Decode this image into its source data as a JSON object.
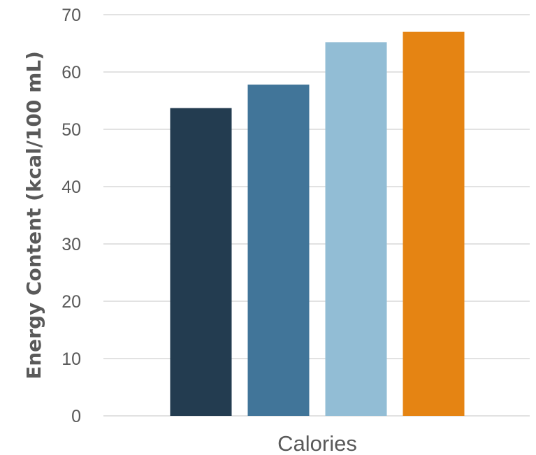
{
  "chart_data": {
    "type": "bar",
    "categories": [
      "Calories"
    ],
    "series": [
      {
        "values": [
          53.7
        ],
        "color": "#233c50"
      },
      {
        "values": [
          57.8
        ],
        "color": "#417599"
      },
      {
        "values": [
          65.2
        ],
        "color": "#92bdd5"
      },
      {
        "values": [
          67.0
        ],
        "color": "#e58413"
      }
    ],
    "ylabel": "Energy Content (kcal/100 mL)",
    "ylim": [
      0,
      70
    ],
    "yticks": [
      0,
      10,
      20,
      30,
      40,
      50,
      60,
      70
    ],
    "grid": true,
    "legend": "none"
  }
}
